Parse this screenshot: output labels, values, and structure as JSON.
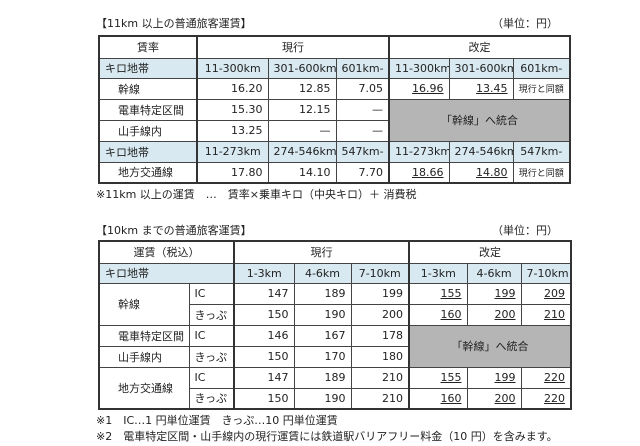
{
  "table1": {
    "title": "【11km 以上の普通旅客運賃】",
    "unit": "（単位：円）",
    "header": {
      "label": "賃率",
      "current": "現行",
      "revised": "改定"
    },
    "band_label": "キロ地帯",
    "bands1": [
      "11-300km",
      "301-600km",
      "601km-"
    ],
    "bands2": [
      "11-273km",
      "274-546km",
      "547km-"
    ],
    "rows": [
      {
        "label": "幹線",
        "current": [
          "16.20",
          "12.85",
          "7.05"
        ],
        "revised": [
          "16.96",
          "13.45",
          "現行と同額"
        ]
      },
      {
        "label": "電車特定区間",
        "current": [
          "15.30",
          "12.15",
          "—"
        ]
      },
      {
        "label": "山手線内",
        "current": [
          "13.25",
          "—",
          "—"
        ]
      },
      {
        "label": "地方交通線",
        "current": [
          "17.80",
          "14.10",
          "7.70"
        ],
        "revised": [
          "18.66",
          "14.80",
          "現行と同額"
        ]
      }
    ],
    "merged": "「幹線」へ統合",
    "note": "※11km 以上の運賃　…　賃率×乗車キロ（中央キロ）＋ 消費税"
  },
  "table2": {
    "title": "【10km までの普通旅客運賃】",
    "unit": "（単位：円）",
    "header": {
      "label": "運賃（税込）",
      "current": "現行",
      "revised": "改定"
    },
    "band_label": "キロ地帯",
    "bands": [
      "1-3km",
      "4-6km",
      "7-10km"
    ],
    "types": [
      "IC",
      "きっぷ"
    ],
    "groups": [
      {
        "label": "幹線",
        "rows": [
          {
            "current": [
              "147",
              "189",
              "199"
            ],
            "revised": [
              "155",
              "199",
              "209"
            ]
          },
          {
            "current": [
              "150",
              "190",
              "200"
            ],
            "revised": [
              "160",
              "200",
              "210"
            ]
          }
        ]
      },
      {
        "label1": "電車特定区間",
        "label2": "山手線内",
        "rows": [
          {
            "current": [
              "146",
              "167",
              "178"
            ]
          },
          {
            "current": [
              "150",
              "170",
              "180"
            ]
          }
        ]
      },
      {
        "label": "地方交通線",
        "rows": [
          {
            "current": [
              "147",
              "189",
              "210"
            ],
            "revised": [
              "155",
              "199",
              "220"
            ]
          },
          {
            "current": [
              "150",
              "190",
              "210"
            ],
            "revised": [
              "160",
              "200",
              "220"
            ]
          }
        ]
      }
    ],
    "merged": "「幹線」へ統合",
    "note1": "※1　IC…1 円単位運賃　きっぷ…10 円単位運賃",
    "note2": "※2　電車特定区間・山手線内の現行運賃には鉄道駅バリアフリー料金（10 円）を含みます。"
  }
}
